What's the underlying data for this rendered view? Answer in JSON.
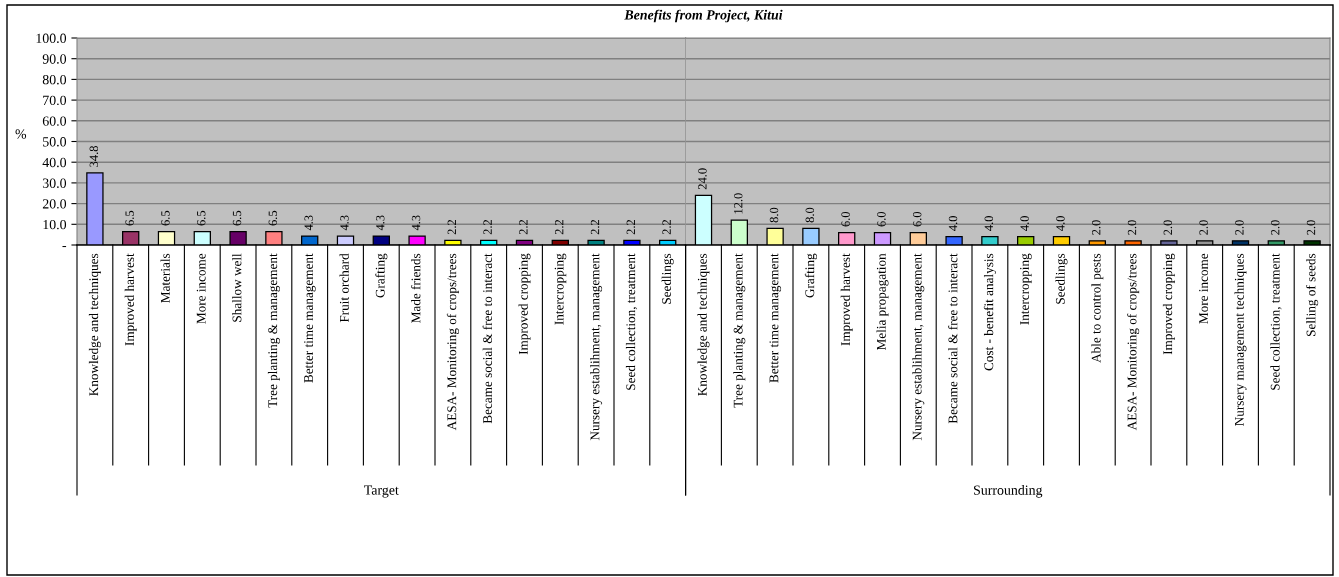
{
  "chart_data": [
    {
      "type": "bar",
      "title": "Benefits from Project, Kitui",
      "ylabel": "%",
      "xlabel": "Target",
      "categories": [
        "Knowledge and techniques",
        "Improved harvest",
        "Materials",
        "More income",
        "Shallow well",
        "Tree planting & management",
        "Better time management",
        "Fruit orchard",
        "Grafting",
        "Made friends",
        "AESA- Monitoring of crops/trees",
        "Became social & free to interact",
        "Improved cropping",
        "Intercropping",
        "Nursery establihment, management",
        "Seed collection, treatment",
        "Seedlings"
      ],
      "values": [
        34.8,
        6.5,
        6.5,
        6.5,
        6.5,
        6.5,
        4.3,
        4.3,
        4.3,
        4.3,
        2.2,
        2.2,
        2.2,
        2.2,
        2.2,
        2.2,
        2.2
      ],
      "value_labels": [
        "34.8",
        "6.5",
        "6.5",
        "6.5",
        "6.5",
        "6.5",
        "4.3",
        "4.3",
        "4.3",
        "4.3",
        "2.2",
        "2.2",
        "2.2",
        "2.2",
        "2.2",
        "2.2",
        "2.2"
      ],
      "colors": [
        "#9999ff",
        "#993366",
        "#ffffcc",
        "#ccffff",
        "#660066",
        "#ff8080",
        "#0066cc",
        "#ccccff",
        "#000080",
        "#ff00ff",
        "#ffff00",
        "#00ffff",
        "#800080",
        "#800000",
        "#008080",
        "#0000ff",
        "#00ccff"
      ],
      "ylim": [
        0,
        100
      ],
      "yticks": [
        {
          "value": 0,
          "label": "-"
        },
        {
          "value": 10,
          "label": "10.0"
        },
        {
          "value": 20,
          "label": "20.0"
        },
        {
          "value": 30,
          "label": "30.0"
        },
        {
          "value": 40,
          "label": "40.0"
        },
        {
          "value": 50,
          "label": "50.0"
        },
        {
          "value": 60,
          "label": "60.0"
        },
        {
          "value": 70,
          "label": "70.0"
        },
        {
          "value": 80,
          "label": "80.0"
        },
        {
          "value": 90,
          "label": "90.0"
        },
        {
          "value": 100,
          "label": "100.0"
        }
      ],
      "grid": "y",
      "legend": false
    },
    {
      "type": "bar",
      "xlabel": "Surrounding",
      "categories": [
        "Knowledge and techniques",
        "Tree planting & management",
        "Better time management",
        "Grafting",
        "Improved harvest",
        "Melia propagation",
        "Nursery establihment, management",
        "Became social & free to interact",
        "Cost - benefit analysis",
        "Intercropping",
        "Seedlings",
        "Able to control pests",
        "AESA- Monitoring of crops/trees",
        "Improved cropping",
        "More income",
        "Nursery management techniques",
        "Seed collection, treatment",
        "Selling of seeds"
      ],
      "values": [
        24.0,
        12.0,
        8.0,
        8.0,
        6.0,
        6.0,
        6.0,
        4.0,
        4.0,
        4.0,
        4.0,
        2.0,
        2.0,
        2.0,
        2.0,
        2.0,
        2.0,
        2.0
      ],
      "value_labels": [
        "24.0",
        "12.0",
        "8.0",
        "8.0",
        "6.0",
        "6.0",
        "6.0",
        "4.0",
        "4.0",
        "4.0",
        "4.0",
        "2.0",
        "2.0",
        "2.0",
        "2.0",
        "2.0",
        "2.0",
        "2.0"
      ],
      "colors": [
        "#ccffff",
        "#ccffcc",
        "#ffff99",
        "#99ccff",
        "#ff99cc",
        "#cc99ff",
        "#ffcc99",
        "#3366ff",
        "#33cccc",
        "#99cc00",
        "#ffcc00",
        "#ff9900",
        "#ff6600",
        "#666699",
        "#969696",
        "#003366",
        "#339966",
        "#003300"
      ],
      "ylim": [
        0,
        100
      ],
      "yticks": [
        0,
        10,
        20,
        30,
        40,
        50,
        60,
        70,
        80,
        90,
        100
      ],
      "grid": "y",
      "legend": false,
      "tick_labels": "x"
    }
  ]
}
